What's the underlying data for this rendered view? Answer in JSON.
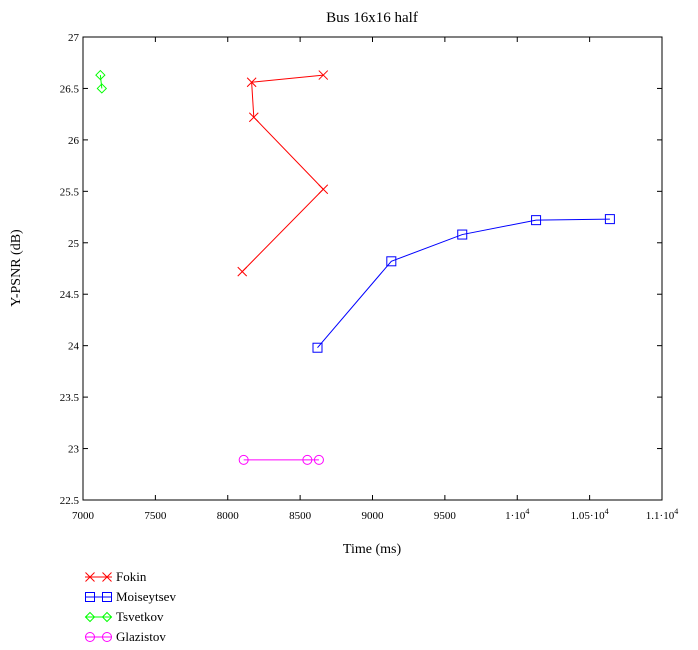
{
  "chart_data": {
    "type": "line",
    "title": "Bus 16x16 half",
    "xlabel": "Time (ms)",
    "ylabel": "Y-PSNR (dB)",
    "xlim": [
      7000,
      11000
    ],
    "ylim": [
      22.5,
      27
    ],
    "grid": false,
    "legend_position": "bottom-left, below plot",
    "x_ticks": [
      {
        "value": 7000,
        "label": "7000"
      },
      {
        "value": 7500,
        "label": "7500"
      },
      {
        "value": 8000,
        "label": "8000"
      },
      {
        "value": 8500,
        "label": "8500"
      },
      {
        "value": 9000,
        "label": "9000"
      },
      {
        "value": 9500,
        "label": "9500"
      },
      {
        "value": 10000,
        "label": "1·10",
        "exp": "4"
      },
      {
        "value": 10500,
        "label": "1.05·10",
        "exp": "4"
      },
      {
        "value": 11000,
        "label": "1.1·10",
        "exp": "4"
      }
    ],
    "y_ticks": [
      {
        "value": 22.5,
        "label": "22.5"
      },
      {
        "value": 23,
        "label": "23"
      },
      {
        "value": 23.5,
        "label": "23.5"
      },
      {
        "value": 24,
        "label": "24"
      },
      {
        "value": 24.5,
        "label": "24.5"
      },
      {
        "value": 25,
        "label": "25"
      },
      {
        "value": 25.5,
        "label": "25.5"
      },
      {
        "value": 26,
        "label": "26"
      },
      {
        "value": 26.5,
        "label": "26.5"
      },
      {
        "value": 27,
        "label": "27"
      }
    ],
    "series": [
      {
        "name": "Fokin",
        "color": "#ff0000",
        "marker": "cross",
        "x": [
          8100,
          8660,
          8180,
          8165,
          8660
        ],
        "y": [
          24.72,
          25.52,
          26.22,
          26.56,
          26.63
        ]
      },
      {
        "name": "Moiseytsev",
        "color": "#0000ff",
        "marker": "square",
        "x": [
          8620,
          9130,
          9620,
          10130,
          10640
        ],
        "y": [
          23.98,
          24.82,
          25.08,
          25.22,
          25.23
        ]
      },
      {
        "name": "Tsvetkov",
        "color": "#00ff00",
        "marker": "diamond",
        "x": [
          7120,
          7130
        ],
        "y": [
          26.63,
          26.5
        ]
      },
      {
        "name": "Glazistov",
        "color": "#ff00ff",
        "marker": "circle",
        "x": [
          8110,
          8550,
          8630
        ],
        "y": [
          22.89,
          22.89,
          22.89
        ]
      }
    ]
  }
}
